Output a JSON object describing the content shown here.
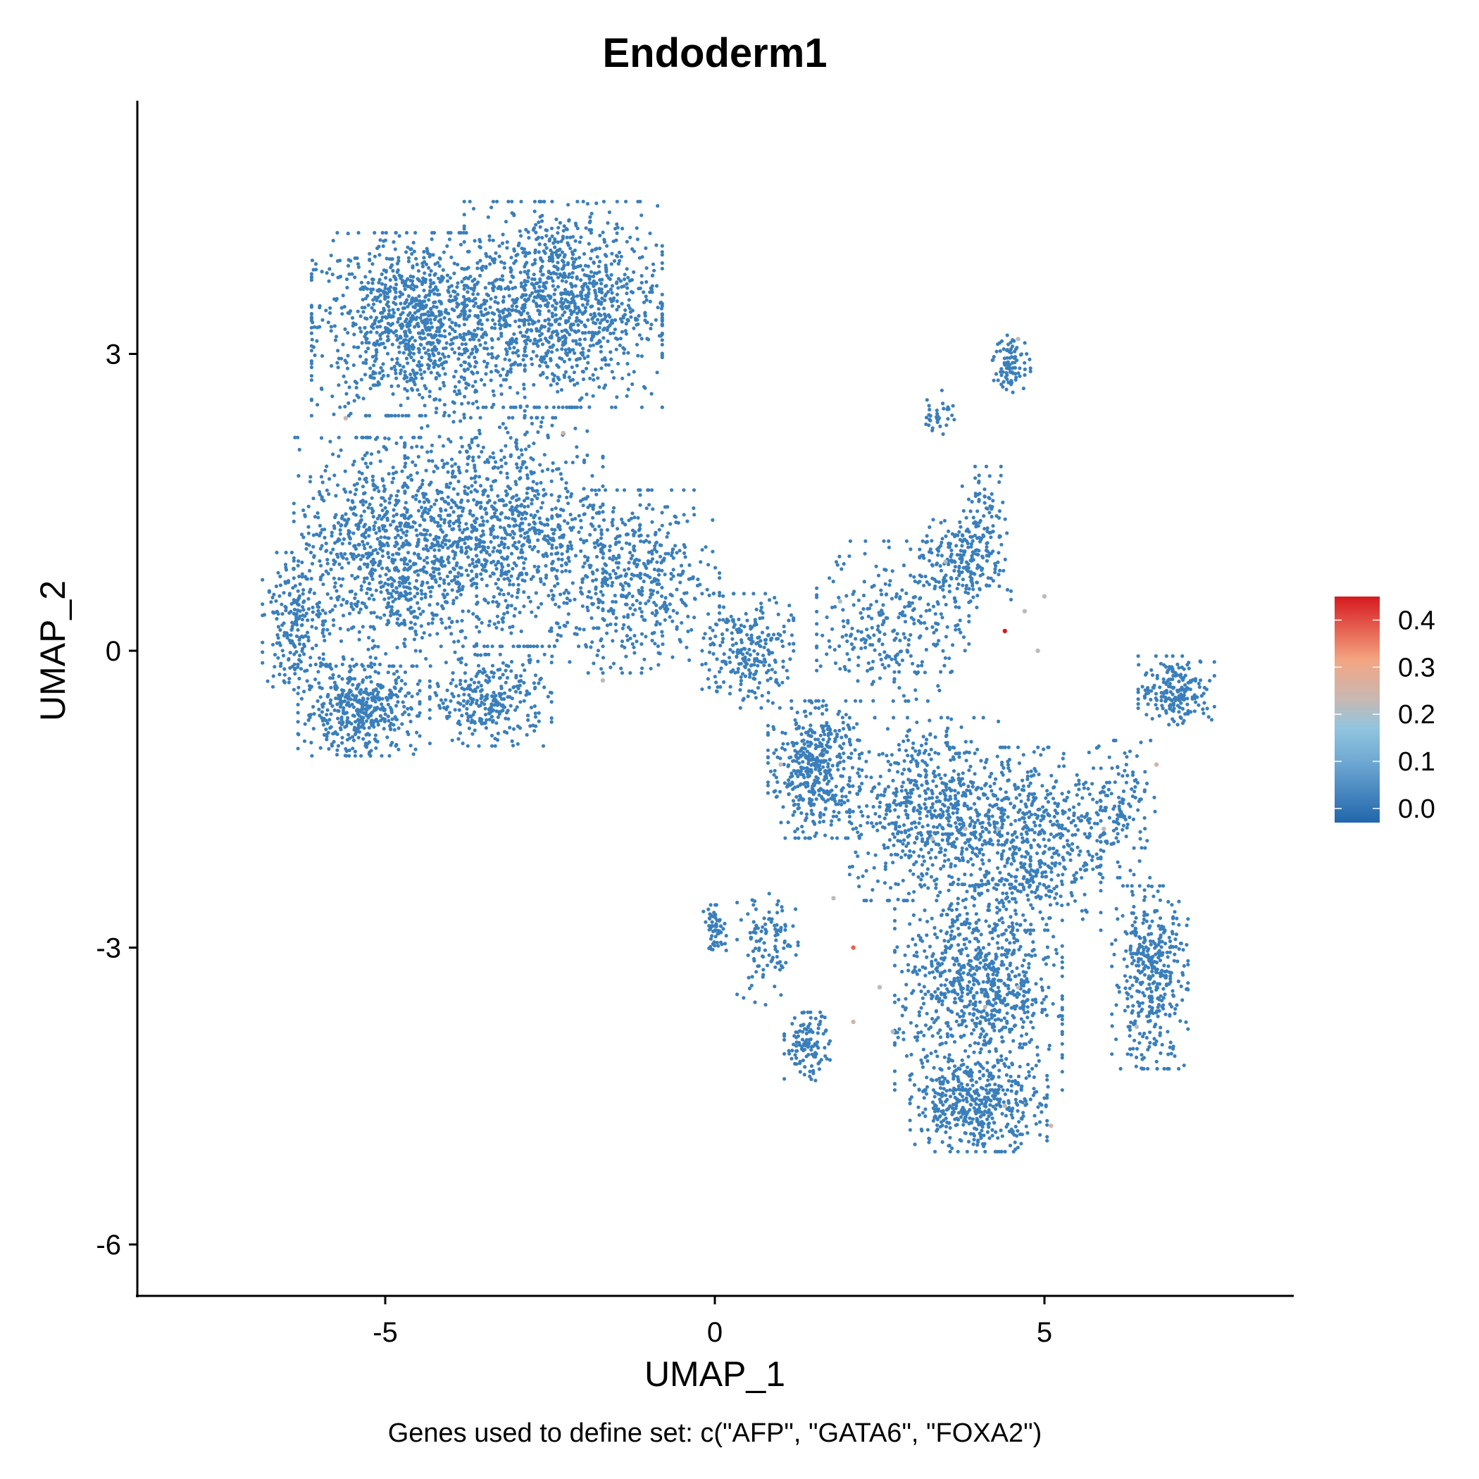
{
  "chart_data": {
    "type": "scatter",
    "title": "Endoderm1",
    "xlabel": "UMAP_1",
    "ylabel": "UMAP_2",
    "caption": "Genes used to define set: c(\"AFP\", \"GATA6\", \"FOXA2\")",
    "xlim": [
      -8.9,
      8.8
    ],
    "ylim": [
      -6.5,
      5.5
    ],
    "x_ticks": [
      -5,
      0,
      5
    ],
    "x_tick_labels": [
      "-5",
      "0",
      "5"
    ],
    "y_ticks": [
      3,
      0,
      -3,
      -6
    ],
    "y_tick_labels": [
      "3",
      "0",
      "-3",
      "-6"
    ],
    "grid": false,
    "legend": {
      "placement": "right",
      "type": "colorbar",
      "range": [
        -0.03,
        0.45
      ],
      "ticks": [
        "0.4",
        "0.3",
        "0.2",
        "0.1",
        "0.0"
      ],
      "tick_values": [
        0.4,
        0.3,
        0.2,
        0.1,
        0.0
      ]
    },
    "colors": {
      "low": "#2166ac",
      "mid_low": "#92c5de",
      "mid": "#c9b7b2",
      "mid_high": "#f4a582",
      "high": "#d6191f",
      "base_point": "#3a7fbb"
    },
    "clusters": [
      {
        "center": [
          -4.5,
          3.3
        ],
        "spread": [
          1.4,
          0.8
        ],
        "count": 1100,
        "score": 0.0
      },
      {
        "center": [
          -2.3,
          3.5
        ],
        "spread": [
          1.3,
          0.9
        ],
        "count": 1100,
        "score": 0.0
      },
      {
        "center": [
          -5.0,
          1.0
        ],
        "spread": [
          1.2,
          1.0
        ],
        "count": 900,
        "score": 0.0
      },
      {
        "center": [
          -3.2,
          1.2
        ],
        "spread": [
          1.3,
          1.0
        ],
        "count": 900,
        "score": 0.0
      },
      {
        "center": [
          -5.4,
          -0.6
        ],
        "spread": [
          0.8,
          0.4
        ],
        "count": 450,
        "score": 0.0
      },
      {
        "center": [
          -3.4,
          -0.5
        ],
        "spread": [
          0.8,
          0.4
        ],
        "count": 300,
        "score": 0.0
      },
      {
        "center": [
          -1.2,
          0.7
        ],
        "spread": [
          1.1,
          0.8
        ],
        "count": 500,
        "score": 0.0
      },
      {
        "center": [
          -6.4,
          0.3
        ],
        "spread": [
          0.4,
          0.6
        ],
        "count": 200,
        "score": 0.0
      },
      {
        "center": [
          0.5,
          0.0
        ],
        "spread": [
          0.6,
          0.5
        ],
        "count": 250,
        "score": 0.0
      },
      {
        "center": [
          1.5,
          -1.2
        ],
        "spread": [
          0.6,
          0.6
        ],
        "count": 450,
        "score": 0.0
      },
      {
        "center": [
          2.7,
          0.3
        ],
        "spread": [
          1.0,
          0.7
        ],
        "count": 300,
        "score": 0.0
      },
      {
        "center": [
          3.8,
          0.9
        ],
        "spread": [
          0.6,
          0.4
        ],
        "count": 220,
        "score": 0.0
      },
      {
        "center": [
          3.2,
          -1.6
        ],
        "spread": [
          1.0,
          0.8
        ],
        "count": 600,
        "score": 0.0
      },
      {
        "center": [
          4.7,
          -1.9
        ],
        "spread": [
          1.0,
          0.8
        ],
        "count": 600,
        "score": 0.0
      },
      {
        "center": [
          4.0,
          -3.4
        ],
        "spread": [
          1.1,
          0.9
        ],
        "count": 850,
        "score": 0.0
      },
      {
        "center": [
          4.0,
          -4.6
        ],
        "spread": [
          0.9,
          0.4
        ],
        "count": 450,
        "score": 0.0
      },
      {
        "center": [
          6.6,
          -3.3
        ],
        "spread": [
          0.5,
          0.8
        ],
        "count": 400,
        "score": 0.0
      },
      {
        "center": [
          7.0,
          -0.4
        ],
        "spread": [
          0.5,
          0.3
        ],
        "count": 200,
        "score": 0.0
      },
      {
        "center": [
          6.1,
          -1.6
        ],
        "spread": [
          0.5,
          0.6
        ],
        "count": 160,
        "score": 0.0
      },
      {
        "center": [
          1.4,
          -4.0
        ],
        "spread": [
          0.3,
          0.3
        ],
        "count": 120,
        "score": 0.0
      },
      {
        "center": [
          0.8,
          -3.0
        ],
        "spread": [
          0.4,
          0.5
        ],
        "count": 110,
        "score": 0.0
      },
      {
        "center": [
          0.0,
          -2.8
        ],
        "spread": [
          0.15,
          0.2
        ],
        "count": 60,
        "score": 0.0
      },
      {
        "center": [
          4.5,
          2.9
        ],
        "spread": [
          0.25,
          0.25
        ],
        "count": 90,
        "score": 0.0
      },
      {
        "center": [
          3.4,
          2.4
        ],
        "spread": [
          0.2,
          0.2
        ],
        "count": 35,
        "score": 0.0
      },
      {
        "center": [
          4.1,
          1.4
        ],
        "spread": [
          0.3,
          0.4
        ],
        "count": 60,
        "score": 0.0
      }
    ],
    "highlighted_points": [
      {
        "x": 4.4,
        "y": 0.2,
        "score": 0.45
      },
      {
        "x": 2.1,
        "y": -3.0,
        "score": 0.38
      },
      {
        "x": -5.6,
        "y": 2.35,
        "score": 0.24
      },
      {
        "x": -2.3,
        "y": 2.2,
        "score": 0.24
      },
      {
        "x": -1.7,
        "y": -0.3,
        "score": 0.22
      },
      {
        "x": 1.9,
        "y": 0.5,
        "score": 0.2
      },
      {
        "x": 4.7,
        "y": 0.4,
        "score": 0.22
      },
      {
        "x": 4.9,
        "y": 0.0,
        "score": 0.22
      },
      {
        "x": 5.0,
        "y": 0.55,
        "score": 0.22
      },
      {
        "x": 3.5,
        "y": 0.9,
        "score": 0.2
      },
      {
        "x": 1.0,
        "y": -1.15,
        "score": 0.22
      },
      {
        "x": 1.8,
        "y": -2.5,
        "score": 0.22
      },
      {
        "x": 2.5,
        "y": -3.4,
        "score": 0.22
      },
      {
        "x": 2.1,
        "y": -3.75,
        "score": 0.24
      },
      {
        "x": 3.3,
        "y": -1.9,
        "score": 0.22
      },
      {
        "x": 3.8,
        "y": -1.8,
        "score": 0.24
      },
      {
        "x": 4.3,
        "y": -1.8,
        "score": 0.22
      },
      {
        "x": 4.1,
        "y": -3.6,
        "score": 0.22
      },
      {
        "x": 4.4,
        "y": -4.6,
        "score": 0.22
      },
      {
        "x": 5.1,
        "y": -4.8,
        "score": 0.24
      },
      {
        "x": 6.4,
        "y": -3.8,
        "score": 0.22
      },
      {
        "x": 6.7,
        "y": -1.15,
        "score": 0.24
      },
      {
        "x": 5.9,
        "y": -1.8,
        "score": 0.22
      },
      {
        "x": 4.6,
        "y": -3.4,
        "score": 0.22
      },
      {
        "x": 4.6,
        "y": 3.15,
        "score": 0.22
      },
      {
        "x": 2.7,
        "y": -3.85,
        "score": 0.2
      }
    ]
  }
}
